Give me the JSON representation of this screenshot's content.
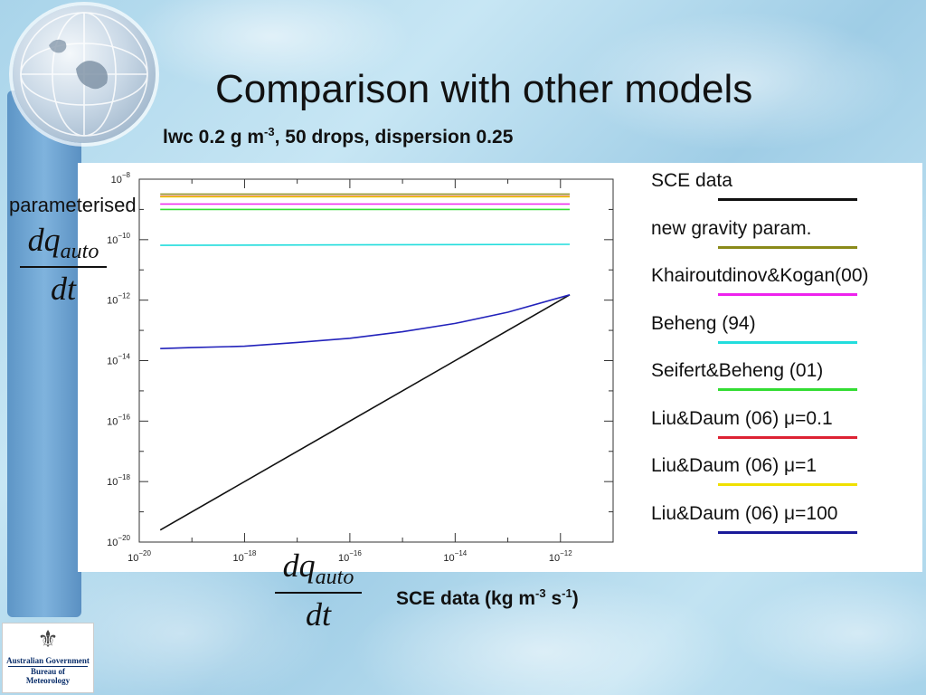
{
  "slide": {
    "title": "Comparison with other models",
    "subtitle_main": "lwc 0.2 g m",
    "subtitle_exp": "-3",
    "subtitle_rest": ", 50 drops, dispersion 0.25",
    "ylabel_word": "parameterised",
    "frac_num": "dq",
    "frac_sub": "auto",
    "frac_den": "dt",
    "xcap_main": "SCE data (kg m",
    "xcap_exp1": "-3",
    "xcap_mid": " s",
    "xcap_exp2": "-1",
    "xcap_end": ")"
  },
  "logo": {
    "crest": "icon:coat-of-arms",
    "line1": "Australian Government",
    "line2": "Bureau of Meteorology"
  },
  "chart_data": {
    "type": "line",
    "xscale": "log",
    "yscale": "log",
    "xlim": [
      1e-20,
      1e-11
    ],
    "ylim": [
      1e-20,
      1e-08
    ],
    "x_ticks": [
      {
        "label": "10",
        "exp": "−20",
        "value": 1e-20
      },
      {
        "label": "10",
        "exp": "−18",
        "value": 1e-18
      },
      {
        "label": "10",
        "exp": "−16",
        "value": 1e-16
      },
      {
        "label": "10",
        "exp": "−14",
        "value": 1e-14
      },
      {
        "label": "10",
        "exp": "−12",
        "value": 1e-12
      }
    ],
    "y_ticks": [
      {
        "label": "10",
        "exp": "−20",
        "value": 1e-20
      },
      {
        "label": "10",
        "exp": "−18",
        "value": 1e-18
      },
      {
        "label": "10",
        "exp": "−16",
        "value": 1e-16
      },
      {
        "label": "10",
        "exp": "−14",
        "value": 1e-14
      },
      {
        "label": "10",
        "exp": "−12",
        "value": 1e-12
      },
      {
        "label": "10",
        "exp": "−10",
        "value": 1e-10
      },
      {
        "label": "10",
        "exp": "−8",
        "value": 1e-08
      }
    ],
    "series": [
      {
        "name": "SCE data",
        "color": "#111111",
        "legend_color": "#111111",
        "x": [
          2.5e-20,
          1.5e-12
        ],
        "y": [
          2.5e-20,
          1.5e-12
        ]
      },
      {
        "name": "new gravity param.",
        "color": "#8a8a1a",
        "legend_color": "#8a8a1a",
        "x": [
          2.5e-20,
          1.5e-12
        ],
        "y": [
          3.2e-09,
          3.2e-09
        ]
      },
      {
        "name": "Khairoutdinov&Kogan(00)",
        "color": "#ee22ee",
        "legend_color": "#ee22ee",
        "x": [
          2.5e-20,
          1.5e-12
        ],
        "y": [
          1.5e-09,
          1.5e-09
        ]
      },
      {
        "name": "Beheng (94)",
        "color": "#22dddd",
        "legend_color": "#22dddd",
        "x": [
          2.5e-20,
          1.5e-12
        ],
        "y": [
          6.5e-11,
          7e-11
        ]
      },
      {
        "name": "Seifert&Beheng (01)",
        "color": "#33dd33",
        "legend_color": "#33dd33",
        "x": [
          2.5e-20,
          1.5e-12
        ],
        "y": [
          1e-09,
          1e-09
        ]
      },
      {
        "name": "Liu&Daum (06) μ=0.1",
        "color": "#dd2233",
        "legend_color": "#dd2233",
        "x": [
          2.5e-20,
          1.5e-12
        ],
        "y": [
          2.7e-09,
          2.7e-09
        ]
      },
      {
        "name": "Liu&Daum (06) μ=1",
        "color": "#eecc00",
        "legend_color": "#f0e000",
        "x": [
          2.5e-20,
          1.5e-12
        ],
        "y": [
          2.6e-09,
          2.6e-09
        ]
      },
      {
        "name": "Liu&Daum (06) μ=100",
        "color": "#2222bb",
        "legend_color": "#1a1a99",
        "x": [
          2.5e-20,
          1e-19,
          1e-18,
          1e-17,
          1e-16,
          1e-15,
          1e-14,
          1e-13,
          1.5e-12
        ],
        "y": [
          2.5e-14,
          2.7e-14,
          3e-14,
          4e-14,
          5.5e-14,
          9e-14,
          1.7e-13,
          4e-13,
          1.5e-12
        ]
      }
    ]
  }
}
